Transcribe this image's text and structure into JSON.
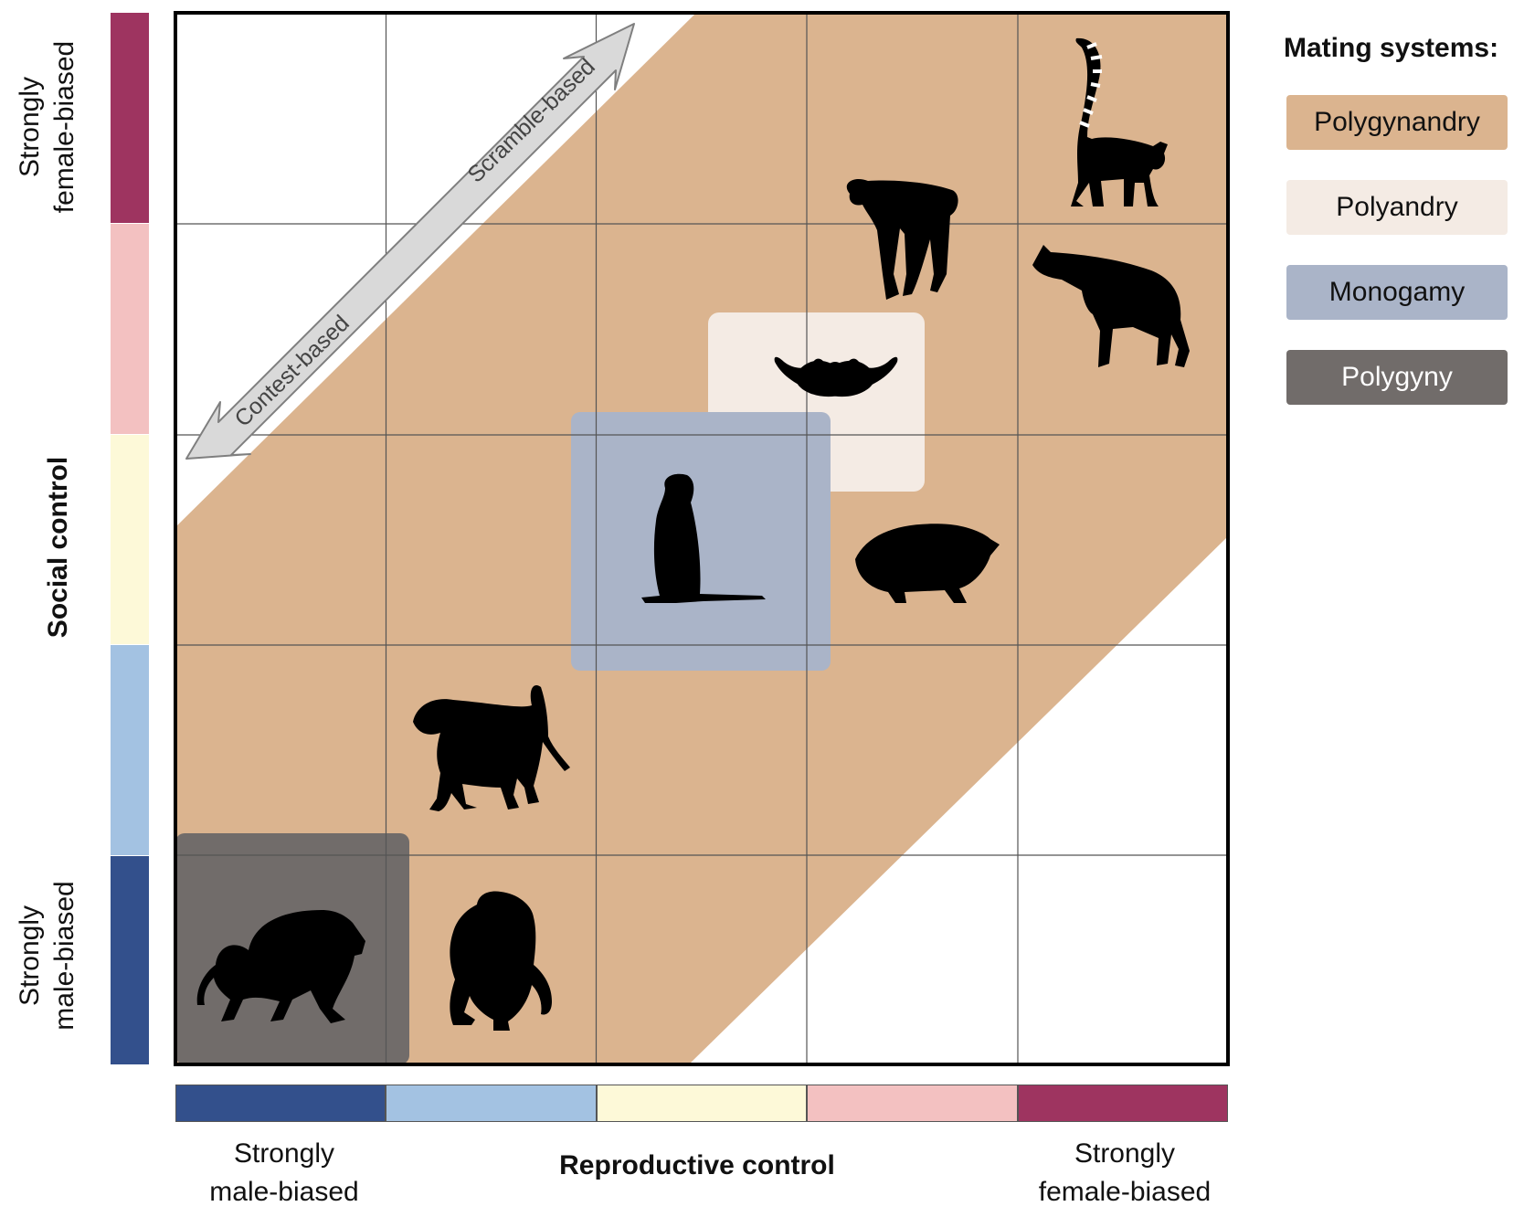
{
  "diagram": {
    "axes": {
      "y_title": "Social control",
      "y_high_label": [
        "Strongly",
        "female-biased"
      ],
      "y_low_label": [
        "Strongly",
        "male-biased"
      ],
      "x_title": "Reproductive control",
      "x_low_label": [
        "Strongly",
        "male-biased"
      ],
      "x_high_label": [
        "Strongly",
        "female-biased"
      ]
    },
    "scale_colors": [
      "#33508c",
      "#a3c2e2",
      "#fdf9d8",
      "#f3c1c1",
      "#9e3460"
    ],
    "grid": {
      "rows": 5,
      "cols": 5
    },
    "arrow": {
      "contest_label": "Contest-based",
      "scramble_label": "Scramble-based"
    },
    "legend": {
      "title": "Mating systems:",
      "items": [
        {
          "label": "Polygynandry",
          "color": "#dbb48f",
          "text_color": "#222222"
        },
        {
          "label": "Polyandry",
          "color": "#f4ebe4",
          "text_color": "#222222"
        },
        {
          "label": "Monogamy",
          "color": "#aab4c8",
          "text_color": "#222222"
        },
        {
          "label": "Polygyny",
          "color": "#716c6a",
          "text_color": "#ffffff"
        }
      ]
    },
    "animals": [
      "ring-tailed-lemur",
      "bonobo",
      "spotted-hyena",
      "mustache",
      "meerkat",
      "rock-hyrax",
      "baboon",
      "hamadryas-baboon",
      "chimpanzee"
    ]
  }
}
